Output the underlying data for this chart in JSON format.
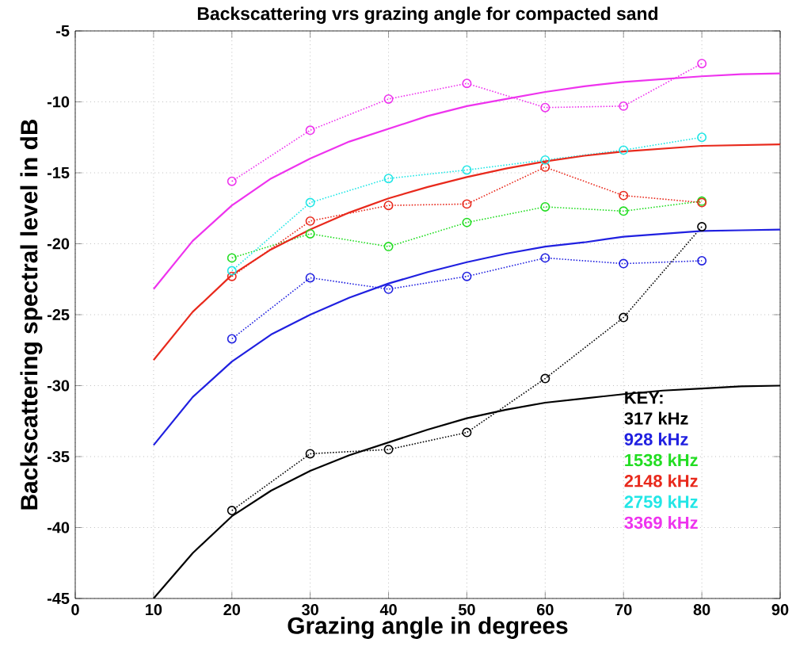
{
  "chart_data": {
    "type": "line",
    "title": "Backscattering vrs grazing angle for compacted sand",
    "xlabel": "Grazing angle in degrees",
    "ylabel": "Backscattering spectral level in dB",
    "legend_title": "KEY:",
    "legend": "bottom right",
    "grid": true,
    "xlim": [
      0,
      90
    ],
    "ylim": [
      -45,
      -5
    ],
    "xticks": [
      0,
      10,
      20,
      30,
      40,
      50,
      60,
      70,
      80,
      90
    ],
    "yticks": [
      -45,
      -40,
      -35,
      -30,
      -25,
      -20,
      -15,
      -10,
      -5
    ],
    "series": [
      {
        "name": "317 kHz",
        "color": "#000000",
        "marker": "circle",
        "line_style": "dotted",
        "x": [
          20,
          30,
          40,
          50,
          60,
          70,
          80
        ],
        "values": [
          -38.8,
          -34.8,
          -34.5,
          -33.3,
          -29.5,
          -25.2,
          -18.8
        ]
      },
      {
        "name": "928 kHz",
        "color": "#2020e0",
        "marker": "circle",
        "line_style": "dotted",
        "x": [
          20,
          30,
          40,
          50,
          60,
          70,
          80
        ],
        "values": [
          -26.7,
          -22.4,
          -23.2,
          -22.3,
          -21.0,
          -21.4,
          -21.2
        ]
      },
      {
        "name": "1538 kHz",
        "color": "#22dd22",
        "marker": "circle",
        "line_style": "dotted",
        "x": [
          20,
          30,
          40,
          50,
          60,
          70,
          80
        ],
        "values": [
          -21.0,
          -19.3,
          -20.2,
          -18.5,
          -17.4,
          -17.7,
          -17.0
        ]
      },
      {
        "name": "2148 kHz",
        "color": "#e8291c",
        "marker": "circle",
        "line_style": "dotted",
        "x": [
          20,
          30,
          40,
          50,
          60,
          70,
          80
        ],
        "values": [
          -22.3,
          -18.4,
          -17.3,
          -17.2,
          -14.6,
          -16.6,
          -17.1
        ]
      },
      {
        "name": "2759 kHz",
        "color": "#22e6e6",
        "marker": "circle",
        "line_style": "dotted",
        "x": [
          20,
          30,
          40,
          50,
          60,
          70,
          80
        ],
        "values": [
          -21.9,
          -17.1,
          -15.4,
          -14.8,
          -14.1,
          -13.4,
          -12.5
        ]
      },
      {
        "name": "3369 kHz",
        "color": "#ee33ee",
        "marker": "circle",
        "line_style": "dotted",
        "x": [
          20,
          30,
          40,
          50,
          60,
          70,
          80
        ],
        "values": [
          -15.6,
          -12.0,
          -9.8,
          -8.7,
          -10.4,
          -10.3,
          -7.3
        ]
      },
      {
        "color": "#000000",
        "marker": "none",
        "line_style": "solid",
        "x": [
          10,
          15,
          20,
          25,
          30,
          35,
          40,
          45,
          50,
          55,
          60,
          65,
          70,
          75,
          80,
          85,
          90
        ],
        "values": [
          -45.0,
          -41.8,
          -39.2,
          -37.4,
          -36.0,
          -34.9,
          -34.0,
          -33.1,
          -32.3,
          -31.7,
          -31.2,
          -30.9,
          -30.6,
          -30.35,
          -30.2,
          -30.05,
          -30.0
        ]
      },
      {
        "color": "#2020e0",
        "marker": "none",
        "line_style": "solid",
        "x": [
          10,
          15,
          20,
          25,
          30,
          35,
          40,
          45,
          50,
          55,
          60,
          65,
          70,
          75,
          80,
          85,
          90
        ],
        "values": [
          -34.2,
          -30.8,
          -28.3,
          -26.4,
          -25.0,
          -23.8,
          -22.8,
          -22.0,
          -21.3,
          -20.7,
          -20.2,
          -19.9,
          -19.5,
          -19.3,
          -19.1,
          -19.05,
          -19.0
        ]
      },
      {
        "color": "#e8291c",
        "marker": "none",
        "line_style": "solid",
        "x": [
          10,
          15,
          20,
          25,
          30,
          35,
          40,
          45,
          50,
          55,
          60,
          65,
          70,
          75,
          80,
          85,
          90
        ],
        "values": [
          -28.2,
          -24.8,
          -22.2,
          -20.4,
          -19.0,
          -17.8,
          -16.8,
          -16.0,
          -15.3,
          -14.7,
          -14.2,
          -13.8,
          -13.5,
          -13.3,
          -13.1,
          -13.05,
          -13.0
        ]
      },
      {
        "color": "#ee33ee",
        "marker": "none",
        "line_style": "solid",
        "x": [
          10,
          15,
          20,
          25,
          30,
          35,
          40,
          45,
          50,
          55,
          60,
          65,
          70,
          75,
          80,
          85,
          90
        ],
        "values": [
          -23.2,
          -19.8,
          -17.3,
          -15.4,
          -14.0,
          -12.8,
          -11.9,
          -11.0,
          -10.3,
          -9.8,
          -9.3,
          -8.9,
          -8.6,
          -8.4,
          -8.2,
          -8.05,
          -8.0
        ]
      }
    ]
  }
}
